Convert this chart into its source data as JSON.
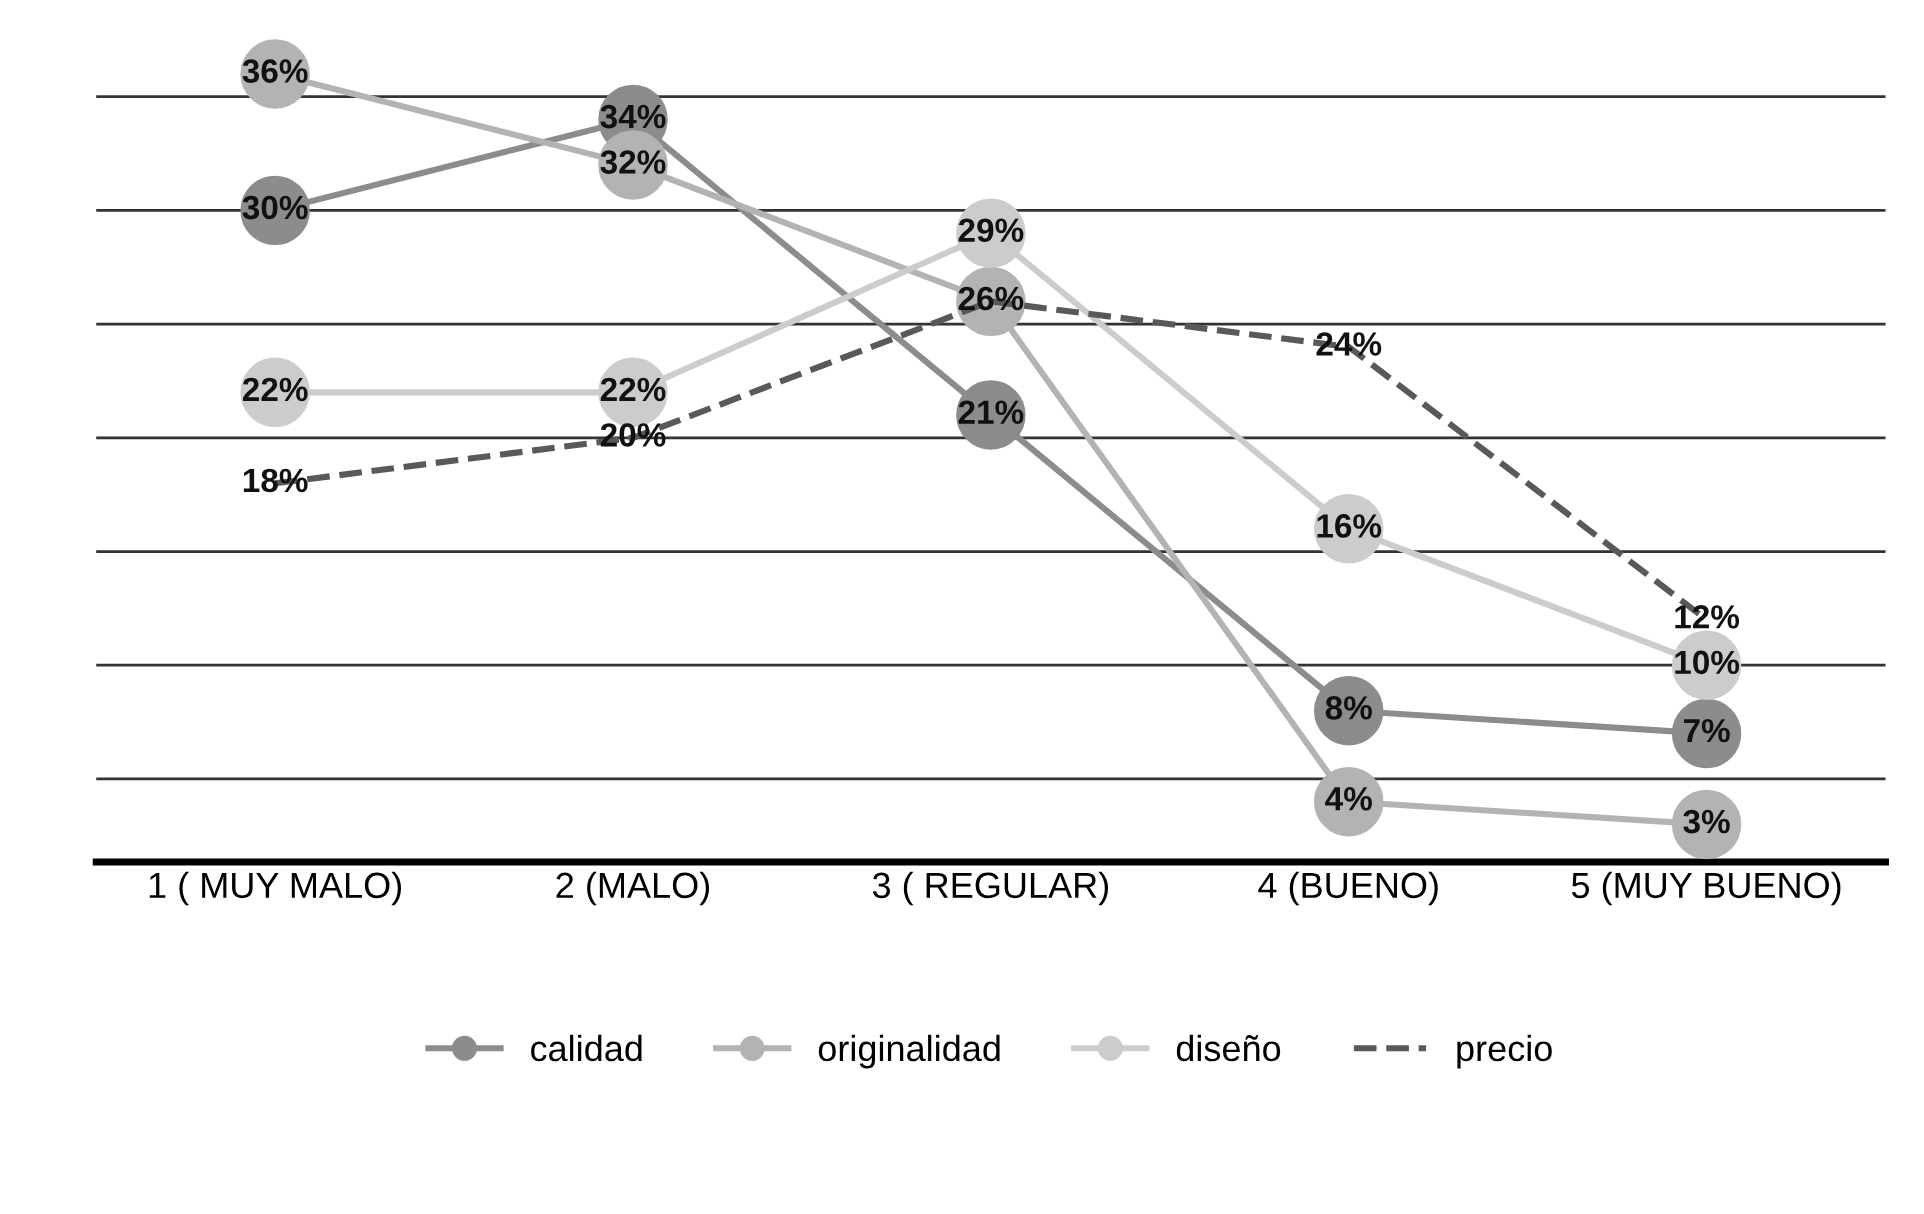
{
  "chart_data": {
    "type": "line",
    "categories": [
      "1 ( MUY MALO)",
      "2 (MALO)",
      "3 ( REGULAR)",
      "4 (BUENO)",
      "5 (MUY BUENO)"
    ],
    "series": [
      {
        "name": "calidad",
        "color": "#8c8c8c",
        "values": [
          30,
          34,
          21,
          8,
          7
        ],
        "value_labels": [
          "30%",
          "34%",
          "21%",
          "8%",
          "7%"
        ]
      },
      {
        "name": "originalidad",
        "color": "#b3b3b3",
        "values": [
          36,
          32,
          26,
          4,
          3
        ],
        "value_labels": [
          "36%",
          "32%",
          "26%",
          "4%",
          "3%"
        ]
      },
      {
        "name": "diseño",
        "color": "#cccccc",
        "values": [
          22,
          22,
          29,
          16,
          10
        ],
        "value_labels": [
          "22%",
          "22%",
          "29%",
          "16%",
          "10%"
        ]
      },
      {
        "name": "precio",
        "color": "#595959",
        "values": [
          18,
          20,
          26,
          24,
          12
        ],
        "value_labels": [
          "18%",
          "20%",
          null,
          "24%",
          "12%"
        ],
        "line_style": "dashed",
        "marker": "none"
      }
    ],
    "grid": "y",
    "tick_labels": "x",
    "marker": "circle",
    "legend": "bottom"
  }
}
